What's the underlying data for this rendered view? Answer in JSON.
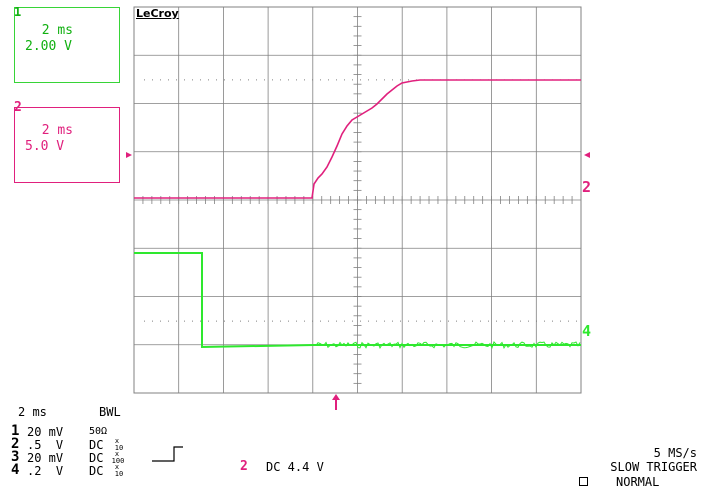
{
  "logo": "LeCroy",
  "channel1_box": {
    "number": "1",
    "timebase": "2 ms",
    "volts_per_div": "2.00 V",
    "color": "#10b010"
  },
  "channel2_box": {
    "number": "2",
    "timebase": "2 ms",
    "volts_per_div": "5.0 V",
    "color": "#e0207d"
  },
  "trace_markers": {
    "ch2": "2",
    "ch4": "4"
  },
  "bottom": {
    "timebase": "2 ms",
    "bwl": "BWL",
    "channels": [
      {
        "num": "1",
        "scale": "20 mV",
        "coupling": "50Ω",
        "probe_top": "",
        "probe_bottom": ""
      },
      {
        "num": "2",
        "scale": ".5  V",
        "coupling": "DC",
        "probe_top": "x",
        "probe_bottom": "10"
      },
      {
        "num": "3",
        "scale": "20 mV",
        "coupling": "DC",
        "probe_top": "x",
        "probe_bottom": "100"
      },
      {
        "num": "4",
        "scale": ".2  V",
        "coupling": "DC",
        "probe_top": "x",
        "probe_bottom": "10"
      }
    ],
    "trigger_channel": "2",
    "trigger_info": "DC 4.4 V",
    "sample_rate": "5 MS/s",
    "trigger_type": "SLOW TRIGGER",
    "trigger_mode": "NORMAL"
  },
  "colors": {
    "grid": "#808080",
    "ch_pink": "#e0207d",
    "ch_green": "#2ee82e"
  }
}
